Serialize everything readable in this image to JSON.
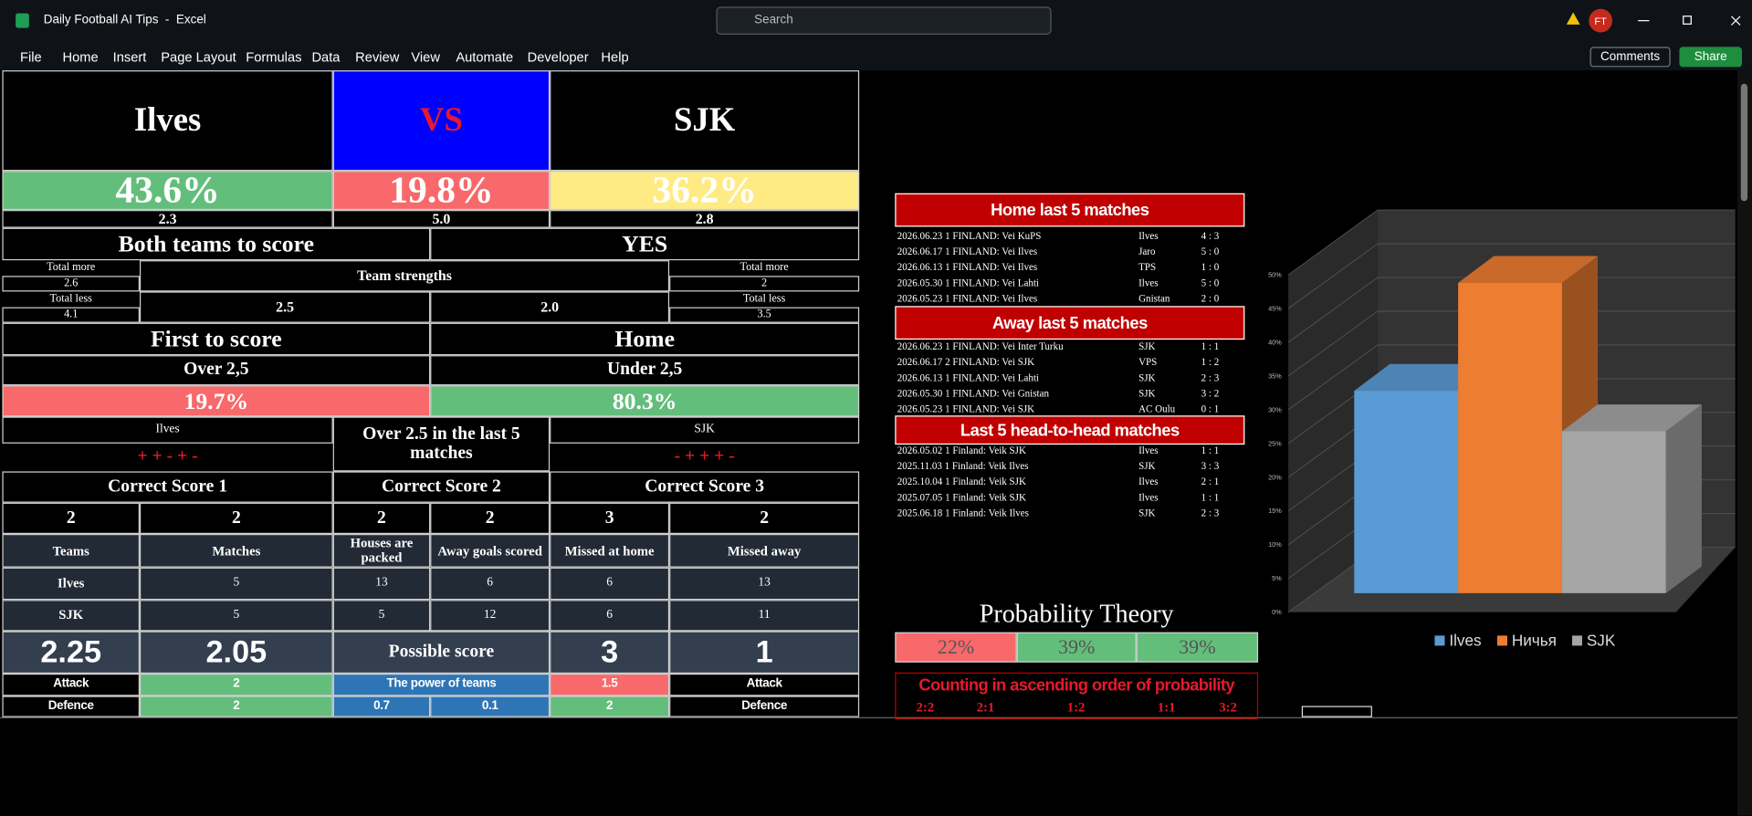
{
  "title_bar": {
    "app_title": "Daily Football AI Tips  -  Excel",
    "search": "Search",
    "user": "FT"
  },
  "menu": [
    "File",
    "Home",
    "Insert",
    "Page Layout",
    "Formulas",
    "Data",
    "Review",
    "View",
    "Automate",
    "Developer",
    "Help"
  ],
  "actions": {
    "comments": "Comments",
    "share": "Share"
  },
  "sheet": {
    "home_team": "Ilves",
    "vs": "VS",
    "away_team": "SJK",
    "home_pct": "43.6%",
    "draw_pct": "19.8%",
    "away_pct": "36.2%",
    "home_odds": "2.3",
    "draw_odds": "5.0",
    "away_odds": "2.8",
    "btts_label": "Both teams to score",
    "btts_value": "YES",
    "total_more_left_label": "Total more",
    "total_more_left": "2.6",
    "team_strengths": "Team strengths",
    "total_more_right_label": "Total more",
    "total_more_right": "2",
    "total_less_left_label": "Total less",
    "total_less_left": "4.1",
    "strength_home": "2.5",
    "strength_away": "2.0",
    "total_less_right_label": "Total less",
    "total_less_right": "3.5",
    "first_to_score_label": "First to score",
    "first_to_score": "Home",
    "over_label": "Over 2,5",
    "under_label": "Under 2,5",
    "over_pct": "19.7%",
    "under_pct": "80.3%",
    "form_home_team": "Ilves",
    "form_home": "+ + - + -",
    "over_last5": "Over 2.5 in the last 5 matches",
    "form_away_team": "SJK",
    "form_away": "- + + + -",
    "correct_score_labels": [
      "Correct Score 1",
      "Correct Score 2",
      "Correct Score 3"
    ],
    "correct_scores": [
      "2",
      "2",
      "2",
      "2",
      "3",
      "2"
    ],
    "stats_header": [
      "Teams",
      "Matches",
      "Houses are packed",
      "Away goals scored",
      "Missed at home",
      "Missed away"
    ],
    "stats_rows": [
      [
        "Ilves",
        "5",
        "13",
        "6",
        "6",
        "13"
      ],
      [
        "SJK",
        "5",
        "5",
        "12",
        "6",
        "11"
      ]
    ],
    "possible_home": "2.25",
    "possible_away": "2.05",
    "possible_label": "Possible score",
    "possible_score_home": "3",
    "possible_score_away": "1",
    "power": {
      "attack_label": "Attack",
      "home_attack": "2",
      "label": "The power of teams",
      "away_attack": "1.5",
      "attack_label_right": "Attack",
      "defence_label": "Defence",
      "home_defence": "2",
      "mid_left": "0.7",
      "mid_right": "0.1",
      "away_defence": "2",
      "defence_label_right": "Defence"
    }
  },
  "matches": {
    "home": {
      "title": "Home last 5 matches",
      "rows": [
        [
          "2026.06.23 1 FINLAND: Vei KuPS",
          "Ilves",
          "4 : 3"
        ],
        [
          "2026.06.17 1 FINLAND: Vei Ilves",
          "Jaro",
          "5 : 0"
        ],
        [
          "2026.06.13 1 FINLAND: Vei Ilves",
          "TPS",
          "1 : 0"
        ],
        [
          "2026.05.30 1 FINLAND: Vei Lahti",
          "Ilves",
          "5 : 0"
        ],
        [
          "2026.05.23 1 FINLAND: Vei Ilves",
          "Gnistan",
          "2 : 0"
        ]
      ]
    },
    "away": {
      "title": "Away last 5 matches",
      "rows": [
        [
          "2026.06.23 1 FINLAND: Vei Inter Turku",
          "SJK",
          "1 : 1"
        ],
        [
          "2026.06.17 2 FINLAND: Vei SJK",
          "VPS",
          "1 : 2"
        ],
        [
          "2026.06.13 1 FINLAND: Vei Lahti",
          "SJK",
          "2 : 3"
        ],
        [
          "2026.05.30 1 FINLAND: Vei Gnistan",
          "SJK",
          "3 : 2"
        ],
        [
          "2026.05.23 1 FINLAND: Vei SJK",
          "AC Oulu",
          "0 : 1"
        ]
      ]
    },
    "h2h": {
      "title": "Last 5 head-to-head matches",
      "rows": [
        [
          "2026.05.02 1 Finland: Veik SJK",
          "Ilves",
          "1 : 1"
        ],
        [
          "2025.11.03 1 Finland: Veik Ilves",
          "SJK",
          "3 : 3"
        ],
        [
          "2025.10.04 1 Finland: Veik SJK",
          "Ilves",
          "2 : 1"
        ],
        [
          "2025.07.05 1 Finland: Veik SJK",
          "Ilves",
          "1 : 1"
        ],
        [
          "2025.06.18 1 Finland: Veik Ilves",
          "SJK",
          "2 : 3"
        ]
      ]
    }
  },
  "probability": {
    "title": "Probability Theory",
    "values": [
      "22%",
      "39%",
      "39%"
    ],
    "counting": "Counting in ascending order of probability",
    "scores": [
      "2:2",
      "2:1",
      "1:2",
      "1:1",
      "3:2"
    ]
  },
  "chart_data": {
    "type": "bar",
    "ylim": [
      0,
      50
    ],
    "yticks": [
      {
        "value": 0,
        "label": "0%"
      },
      {
        "value": 5,
        "label": "5%"
      },
      {
        "value": 10,
        "label": "10%"
      },
      {
        "value": 15,
        "label": "15%"
      },
      {
        "value": 20,
        "label": "20%"
      },
      {
        "value": 25,
        "label": "25%"
      },
      {
        "value": 30,
        "label": "30%"
      },
      {
        "value": 35,
        "label": "35%"
      },
      {
        "value": 40,
        "label": "40%"
      },
      {
        "value": 45,
        "label": "45%"
      },
      {
        "value": 50,
        "label": "50%"
      }
    ],
    "grid": true,
    "series": [
      {
        "name": "Ilves",
        "color": "#5b9bd5",
        "values": [
          30
        ]
      },
      {
        "name": "Ничья",
        "color": "#ed7d31",
        "values": [
          46
        ]
      },
      {
        "name": "SJK",
        "color": "#a5a5a5",
        "values": [
          24
        ]
      }
    ]
  }
}
